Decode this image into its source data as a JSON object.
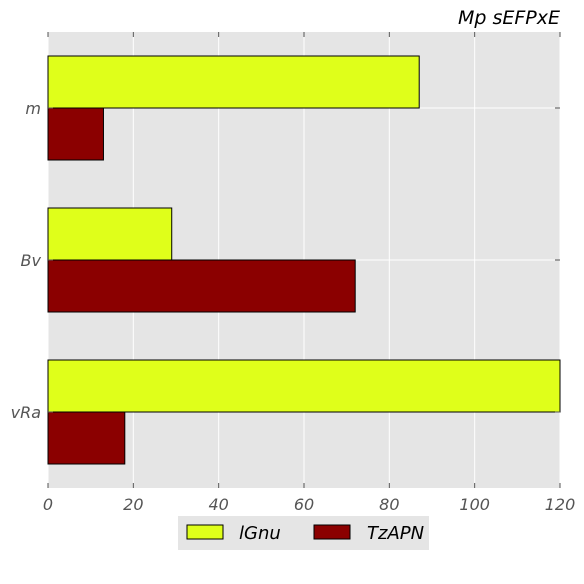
{
  "chart_data": {
    "type": "bar",
    "orientation": "horizontal",
    "title": "Mp   sEFPxE",
    "xlabel": "",
    "ylabel": "",
    "categories": [
      "m",
      "Bv",
      "vRa"
    ],
    "series": [
      {
        "name": "lGnu",
        "color": "#dfff1a",
        "values": [
          87,
          29,
          120
        ]
      },
      {
        "name": "TzAPN",
        "color": "#8b0000",
        "values": [
          13,
          72,
          18
        ]
      }
    ],
    "xlim": [
      0,
      120
    ],
    "xticks": [
      "0",
      "20",
      "40",
      "60",
      "80",
      "100",
      "120"
    ],
    "grid": true,
    "legend_position": "bottom-center",
    "background": "#e5e5e5"
  }
}
